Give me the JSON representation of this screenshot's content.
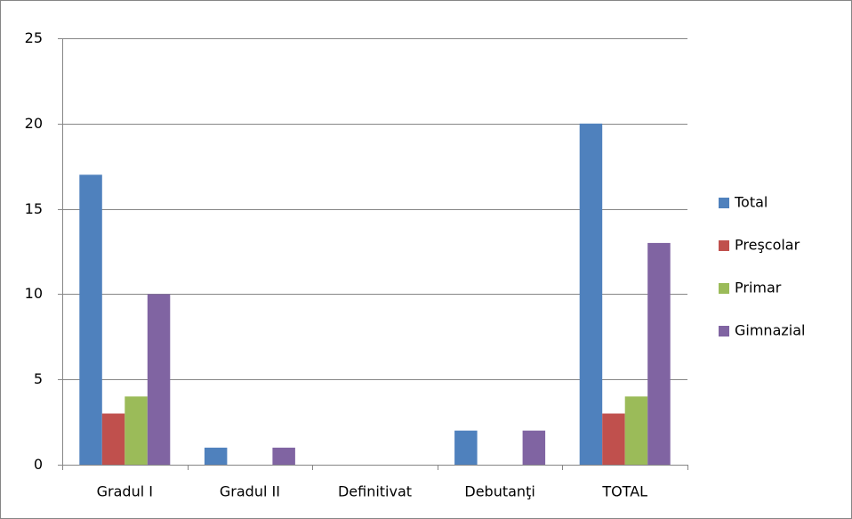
{
  "chart_data": {
    "type": "bar",
    "categories": [
      "Gradul I",
      "Gradul II",
      "Definitivat",
      "Debutanţi",
      "TOTAL"
    ],
    "series": [
      {
        "name": "Total",
        "color": "#4f81bd",
        "values": [
          17,
          1,
          0,
          2,
          20
        ]
      },
      {
        "name": "Preşcolar",
        "color": "#c0504d",
        "values": [
          3,
          0,
          0,
          0,
          3
        ]
      },
      {
        "name": "Primar",
        "color": "#9bbb59",
        "values": [
          4,
          0,
          0,
          0,
          4
        ]
      },
      {
        "name": "Gimnazial",
        "color": "#8064a2",
        "values": [
          10,
          1,
          0,
          2,
          13
        ]
      }
    ],
    "ylim": [
      0,
      25
    ],
    "yticks": [
      0,
      5,
      10,
      15,
      20,
      25
    ],
    "grid": true,
    "legend": "right"
  }
}
